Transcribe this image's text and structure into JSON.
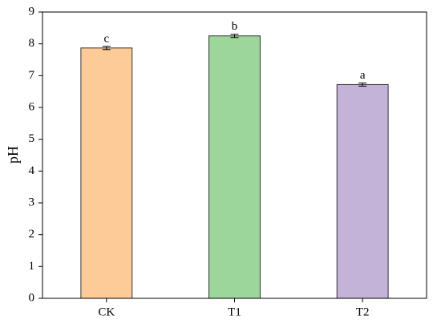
{
  "chart_data": {
    "type": "bar",
    "y_label": "pH",
    "categories": [
      "CK",
      "T1",
      "T2"
    ],
    "values": [
      7.87,
      8.25,
      6.72
    ],
    "errors": [
      0.05,
      0.05,
      0.05
    ],
    "letters": [
      "c",
      "b",
      "a"
    ],
    "colors": [
      "#fdcb97",
      "#9cd69a",
      "#c3b3d9"
    ],
    "ylim": [
      0,
      9
    ],
    "yticks": [
      0,
      1,
      2,
      3,
      4,
      5,
      6,
      7,
      8,
      9
    ]
  }
}
